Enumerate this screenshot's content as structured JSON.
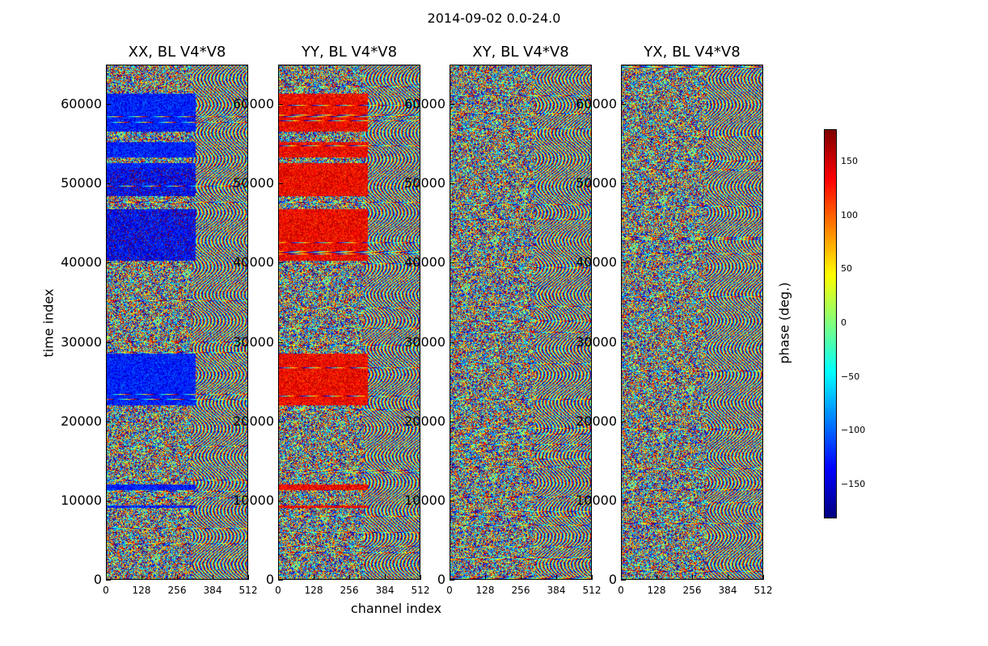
{
  "chart_data": {
    "type": "heatmap",
    "suptitle": "2014-09-02 0.0-24.0",
    "panels": [
      {
        "title": "XX, BL V4*V8",
        "pol": "XX"
      },
      {
        "title": "YY, BL V4*V8",
        "pol": "YY"
      },
      {
        "title": "XY, BL V4*V8",
        "pol": "XY"
      },
      {
        "title": "YX, BL V4*V8",
        "pol": "YX"
      }
    ],
    "xlabel": "channel index",
    "ylabel": "time index",
    "xlim": [
      0,
      512
    ],
    "ylim": [
      0,
      65000
    ],
    "xticks": [
      "0",
      "128",
      "256",
      "384",
      "512"
    ],
    "yticks": [
      "0",
      "10000",
      "20000",
      "30000",
      "40000",
      "50000",
      "60000"
    ],
    "colorbar": {
      "label": "phase (deg.)",
      "range": [
        -180,
        180
      ],
      "ticks": [
        "150",
        "100",
        "50",
        "0",
        "−50",
        "−100",
        "−150"
      ],
      "colormap": "jet"
    }
  }
}
